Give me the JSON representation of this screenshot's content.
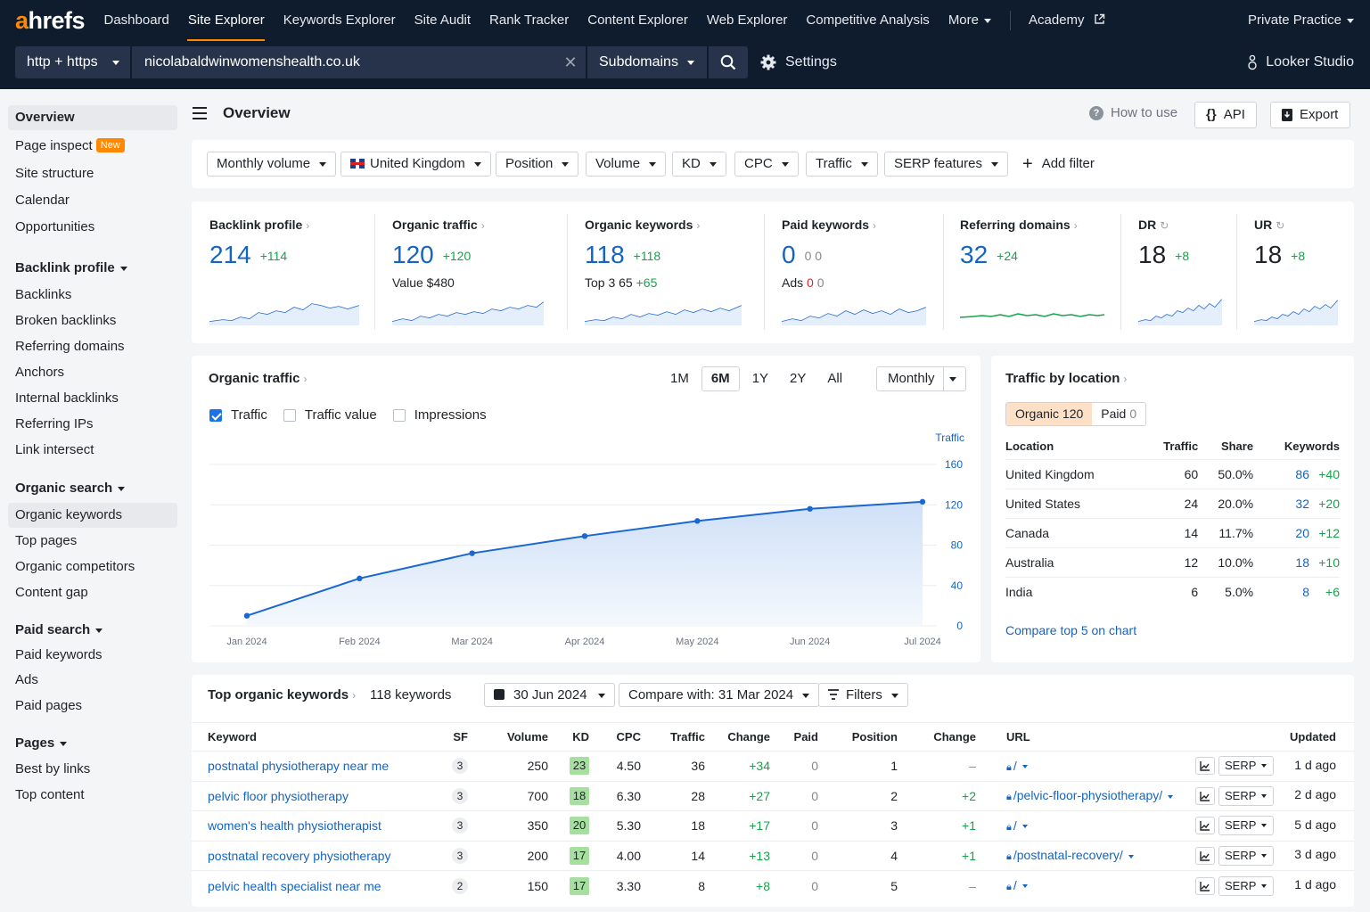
{
  "app": {
    "logo": "ahrefs",
    "nav": [
      "Dashboard",
      "Site Explorer",
      "Keywords Explorer",
      "Site Audit",
      "Rank Tracker",
      "Content Explorer",
      "Web Explorer",
      "Competitive Analysis",
      "More",
      "Academy"
    ],
    "active_nav": "Site Explorer",
    "account": "Private Practice",
    "protocol": "http + https",
    "url": "nicolabaldwinwomenshealth.co.uk",
    "mode": "Subdomains",
    "settings_label": "Settings",
    "looker_label": "Looker Studio"
  },
  "sidebar": {
    "top": [
      {
        "label": "Overview"
      },
      {
        "label": "Page inspect",
        "badge": "New"
      },
      {
        "label": "Site structure"
      },
      {
        "label": "Calendar"
      },
      {
        "label": "Opportunities"
      }
    ],
    "sections": [
      {
        "title": "Backlink profile",
        "items": [
          "Backlinks",
          "Broken backlinks",
          "Referring domains",
          "Anchors",
          "Internal backlinks",
          "Referring IPs",
          "Link intersect"
        ]
      },
      {
        "title": "Organic search",
        "items": [
          "Organic keywords",
          "Top pages",
          "Organic competitors",
          "Content gap"
        ]
      },
      {
        "title": "Paid search",
        "items": [
          "Paid keywords",
          "Ads",
          "Paid pages"
        ]
      },
      {
        "title": "Pages",
        "items": [
          "Best by links",
          "Top content"
        ]
      }
    ]
  },
  "header": {
    "title": "Overview",
    "how_to_use": "How to use",
    "api": "API",
    "export": "Export"
  },
  "filters": [
    "Monthly volume",
    "United Kingdom",
    "Position",
    "Volume",
    "KD",
    "CPC",
    "Traffic",
    "SERP features"
  ],
  "add_filter": "Add filter",
  "metrics": [
    {
      "title": "Backlink profile",
      "value": "214",
      "delta": "+114",
      "sub": ""
    },
    {
      "title": "Organic traffic",
      "value": "120",
      "delta": "+120",
      "sub": "Value $480"
    },
    {
      "title": "Organic keywords",
      "value": "118",
      "delta": "+118",
      "sub_label": "Top 3",
      "sub_value": "65",
      "sub_delta": "+65"
    },
    {
      "title": "Paid keywords",
      "value": "0",
      "delta": "0 0",
      "sub_label": "Ads",
      "sub_value": "0",
      "sub_delta": "0"
    },
    {
      "title": "Referring domains",
      "value": "32",
      "delta": "+24",
      "sub": ""
    },
    {
      "title": "DR",
      "value": "18",
      "delta": "+8",
      "sub": ""
    },
    {
      "title": "UR",
      "value": "18",
      "delta": "+8",
      "sub": ""
    }
  ],
  "traffic_panel": {
    "title": "Organic traffic",
    "ranges": [
      "1M",
      "6M",
      "1Y",
      "2Y",
      "All"
    ],
    "active_range": "6M",
    "interval": "Monthly",
    "checkboxes": [
      {
        "label": "Traffic",
        "checked": true
      },
      {
        "label": "Traffic value",
        "checked": false
      },
      {
        "label": "Impressions",
        "checked": false
      }
    ]
  },
  "chart_data": {
    "type": "area",
    "ylabel": "Traffic",
    "x": [
      "Jan 2024",
      "Feb 2024",
      "Mar 2024",
      "Apr 2024",
      "May 2024",
      "Jun 2024",
      "Jul 2024"
    ],
    "series": [
      {
        "name": "Traffic",
        "values": [
          10,
          47,
          72,
          89,
          104,
          116,
          123
        ]
      }
    ],
    "yticks": [
      "160",
      "120",
      "80",
      "40",
      "0"
    ],
    "ylim": [
      0,
      160
    ],
    "color": "#1a66d2"
  },
  "location_panel": {
    "title": "Traffic by location",
    "tabs": [
      {
        "label": "Organic",
        "value": "120"
      },
      {
        "label": "Paid",
        "value": "0"
      }
    ],
    "columns": [
      "Location",
      "Traffic",
      "Share",
      "Keywords"
    ],
    "rows": [
      {
        "location": "United Kingdom",
        "traffic": "60",
        "share": "50.0%",
        "keywords": "86",
        "delta": "+40"
      },
      {
        "location": "United States",
        "traffic": "24",
        "share": "20.0%",
        "keywords": "32",
        "delta": "+20"
      },
      {
        "location": "Canada",
        "traffic": "14",
        "share": "11.7%",
        "keywords": "20",
        "delta": "+12"
      },
      {
        "location": "Australia",
        "traffic": "12",
        "share": "10.0%",
        "keywords": "18",
        "delta": "+10"
      },
      {
        "location": "India",
        "traffic": "6",
        "share": "5.0%",
        "keywords": "8",
        "delta": "+6"
      }
    ],
    "compare_link": "Compare top 5 on chart"
  },
  "keywords_panel": {
    "title": "Top organic keywords",
    "count": "118 keywords",
    "date": "30 Jun 2024",
    "compare": "Compare with: 31 Mar 2024",
    "filters": "Filters",
    "columns": [
      "Keyword",
      "SF",
      "Volume",
      "KD",
      "CPC",
      "Traffic",
      "Change",
      "Paid",
      "Position",
      "Change",
      "URL",
      "Updated"
    ],
    "rows": [
      {
        "keyword": "postnatal physiotherapy near me",
        "sf": "3",
        "volume": "250",
        "kd": "23",
        "cpc": "4.50",
        "traffic": "36",
        "change": "+34",
        "paid": "0",
        "position": "1",
        "pos_change": "–",
        "url": "/",
        "updated": "1 d ago"
      },
      {
        "keyword": "pelvic floor physiotherapy",
        "sf": "3",
        "volume": "700",
        "kd": "18",
        "cpc": "6.30",
        "traffic": "28",
        "change": "+27",
        "paid": "0",
        "position": "2",
        "pos_change": "+2",
        "url": "/pelvic-floor-physiotherapy/",
        "updated": "2 d ago"
      },
      {
        "keyword": "women's health physiotherapist",
        "sf": "3",
        "volume": "350",
        "kd": "20",
        "cpc": "5.30",
        "traffic": "18",
        "change": "+17",
        "paid": "0",
        "position": "3",
        "pos_change": "+1",
        "url": "/",
        "updated": "5 d ago"
      },
      {
        "keyword": "postnatal recovery physiotherapy",
        "sf": "3",
        "volume": "200",
        "kd": "17",
        "cpc": "4.00",
        "traffic": "14",
        "change": "+13",
        "paid": "0",
        "position": "4",
        "pos_change": "+1",
        "url": "/postnatal-recovery/",
        "updated": "3 d ago"
      },
      {
        "keyword": "pelvic health specialist near me",
        "sf": "2",
        "volume": "150",
        "kd": "17",
        "cpc": "3.30",
        "traffic": "8",
        "change": "+8",
        "paid": "0",
        "position": "5",
        "pos_change": "–",
        "url": "/",
        "updated": "1 d ago"
      }
    ],
    "serp_label": "SERP"
  },
  "colors": {
    "topbar": "#0f1c2e",
    "accent": "#ff8800",
    "link": "#1565c0",
    "positive": "#16a34a"
  }
}
